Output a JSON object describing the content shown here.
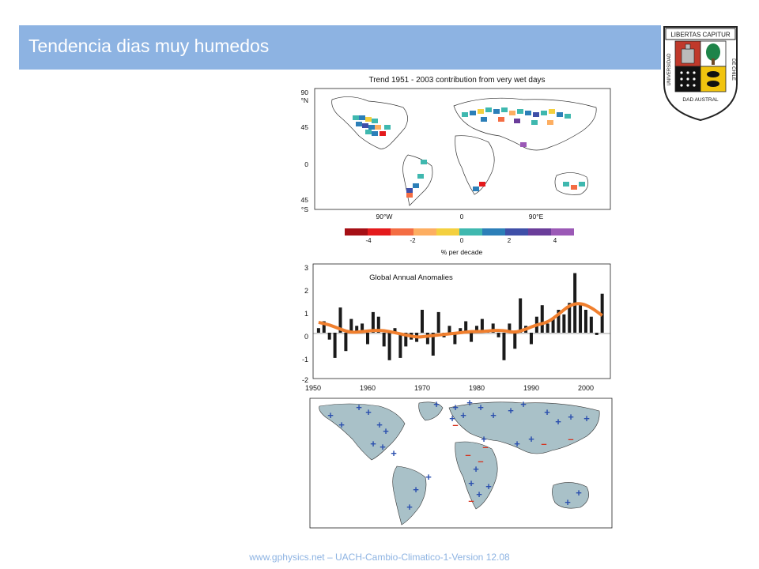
{
  "slide": {
    "title": "Tendencia dias muy humedos",
    "footer": "www.gphysics.net – UACH-Cambio-Climatico-1-Version 12.08",
    "accent_color": "#8db3e2"
  },
  "logo": {
    "motto": "LIBERTAS CAPITUR",
    "ring_left": "UNIVERSIDAD",
    "ring_bottom": "DAD AUSTRAL",
    "ring_right": "DE CHILE",
    "icon": "university-crest-icon"
  },
  "map_panel": {
    "title": "Trend 1951 - 2003 contribution from very wet days",
    "lat_labels": [
      "90",
      "°N",
      "45",
      "0",
      "45",
      "°S"
    ],
    "lon_labels": [
      "90°W",
      "0",
      "90°E"
    ],
    "colorbar_colors": [
      "#a50f15",
      "#e41a1c",
      "#f46d43",
      "#fdae61",
      "#f4d03f",
      "#3fb8af",
      "#2c7fb8",
      "#3f4fa8",
      "#6a3d9a",
      "#9b59b6"
    ],
    "colorbar_ticks": [
      "-4",
      "-2",
      "0",
      "2",
      "4"
    ],
    "colorbar_label": "% per decade"
  },
  "chart_data": {
    "type": "bar",
    "title": "Global Annual Anomalies",
    "xlabel": "",
    "ylabel": "",
    "xlim": [
      1949,
      2005
    ],
    "ylim": [
      -2,
      3
    ],
    "x_ticks": [
      "1950",
      "1960",
      "1970",
      "1980",
      "1990",
      "2000"
    ],
    "y_ticks": [
      "3",
      "2",
      "1",
      "0",
      "-1",
      "-2"
    ],
    "series": [
      {
        "type": "bar",
        "color": "#1a1a1a",
        "x": [
          1951,
          1952,
          1953,
          1954,
          1955,
          1956,
          1957,
          1958,
          1959,
          1960,
          1961,
          1962,
          1963,
          1964,
          1965,
          1966,
          1967,
          1968,
          1969,
          1970,
          1971,
          1972,
          1973,
          1974,
          1975,
          1976,
          1977,
          1978,
          1979,
          1980,
          1981,
          1982,
          1983,
          1984,
          1985,
          1986,
          1987,
          1988,
          1989,
          1990,
          1991,
          1992,
          1993,
          1994,
          1995,
          1996,
          1997,
          1998,
          1999,
          2000,
          2001,
          2002,
          2003
        ],
        "values": [
          0.2,
          0.5,
          -0.3,
          -1.1,
          1.1,
          -0.8,
          0.6,
          0.3,
          0.4,
          -0.5,
          0.9,
          0.7,
          -0.6,
          -1.2,
          0.2,
          -1.1,
          -0.6,
          -0.3,
          -0.4,
          1.0,
          -0.5,
          -1.0,
          0.9,
          -0.2,
          0.3,
          -0.5,
          0.2,
          0.5,
          -0.4,
          0.3,
          0.6,
          0.1,
          0.4,
          -0.2,
          -1.2,
          0.4,
          -0.7,
          1.5,
          0.3,
          -0.5,
          0.7,
          1.2,
          0.4,
          0.6,
          1.0,
          0.8,
          1.3,
          2.6,
          1.3,
          1.0,
          0.7,
          -0.1,
          1.7
        ]
      },
      {
        "type": "line",
        "color": "#f07f2e",
        "x": [
          1951,
          1953,
          1955,
          1957,
          1959,
          1961,
          1963,
          1965,
          1967,
          1969,
          1971,
          1973,
          1975,
          1977,
          1979,
          1981,
          1983,
          1985,
          1987,
          1989,
          1991,
          1993,
          1995,
          1997,
          1999,
          2001,
          2003
        ],
        "values": [
          0.45,
          0.35,
          0.15,
          0.0,
          0.05,
          0.1,
          0.1,
          0.0,
          -0.1,
          -0.2,
          -0.15,
          -0.1,
          -0.05,
          0.0,
          0.05,
          0.05,
          0.1,
          0.1,
          0.0,
          0.15,
          0.35,
          0.45,
          0.8,
          1.2,
          1.3,
          1.1,
          0.75
        ]
      }
    ]
  },
  "stations_panel": {
    "land_color": "#a9c1c8",
    "plus_color": "#2b4fae",
    "minus_color": "#d6331f",
    "plus_symbol": "+",
    "minus_symbol": "–"
  }
}
